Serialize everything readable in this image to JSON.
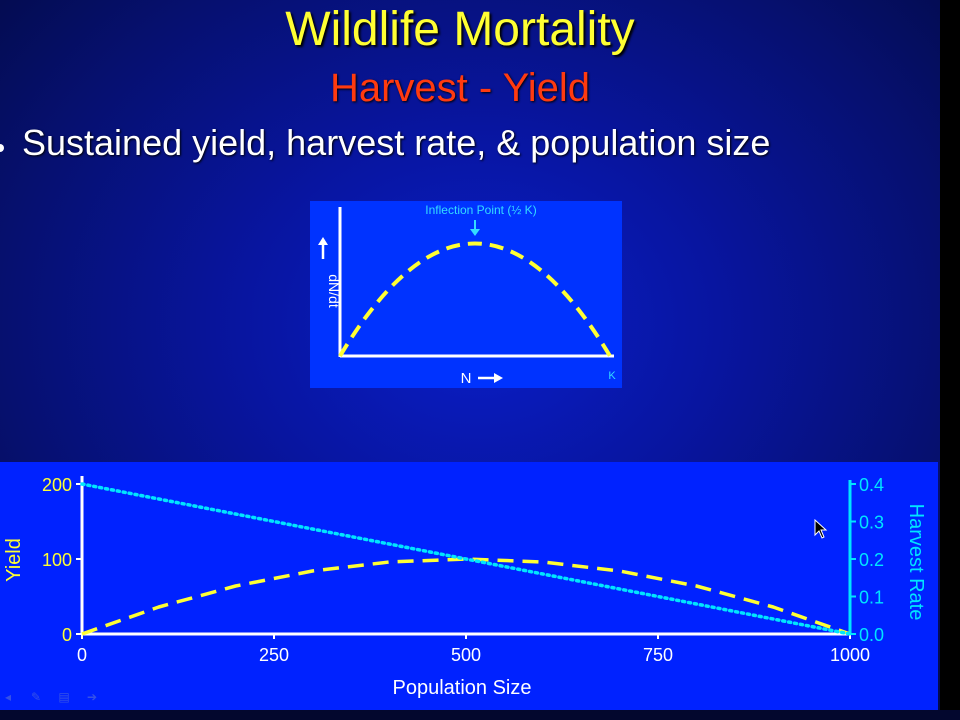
{
  "slide": {
    "title": "Wildlife Mortality",
    "subtitle": "Harvest - Yield",
    "bullet": "Sustained yield, harvest rate, & population size"
  },
  "colors": {
    "title": "#ffff33",
    "subtitle": "#ff3a10",
    "yield_curve": "#ffff33",
    "harvest_rate_line": "#00e5ff",
    "axis_right": "#00e5ff",
    "chart_background": "#0022ff"
  },
  "inset_chart": {
    "annotation": "Inflection Point (½ K)",
    "y_label": "dN/dt",
    "x_label": "N",
    "k_label": "K"
  },
  "chart_data": {
    "type": "line",
    "x": [
      0,
      100,
      200,
      300,
      400,
      500,
      600,
      700,
      800,
      900,
      1000
    ],
    "xlabel": "Population Size",
    "ylabel": "Yield",
    "y2label": "Harvest Rate",
    "xlim": [
      0,
      1000
    ],
    "ylim": [
      0,
      200
    ],
    "y2lim": [
      0,
      0.4
    ],
    "xticks": [
      "0",
      "250",
      "500",
      "750",
      "1000"
    ],
    "yticks": [
      "0",
      "100",
      "200"
    ],
    "y2ticks": [
      "0.0",
      "0.1",
      "0.2",
      "0.3",
      "0.4"
    ],
    "series": [
      {
        "name": "Yield",
        "axis": "left",
        "values": [
          0,
          36,
          64,
          84,
          96,
          100,
          96,
          84,
          64,
          36,
          0
        ]
      },
      {
        "name": "Harvest Rate",
        "axis": "right",
        "values": [
          0.4,
          0.36,
          0.32,
          0.28,
          0.24,
          0.2,
          0.16,
          0.12,
          0.08,
          0.04,
          0.0
        ]
      }
    ]
  },
  "toolbar": {
    "icons": [
      "pointer-icon",
      "pen-icon",
      "slides-icon",
      "next-icon"
    ]
  }
}
